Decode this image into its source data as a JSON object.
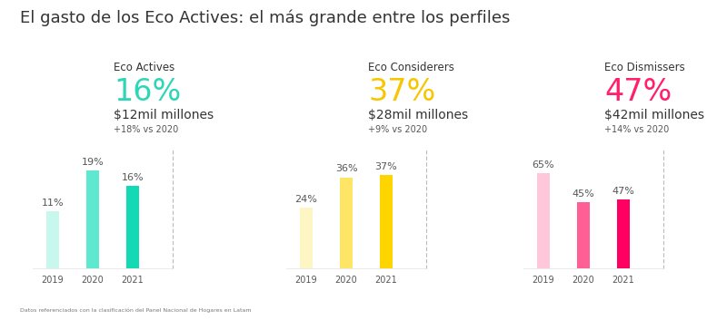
{
  "title": "El gasto de los Eco Actives: el más grande entre los perfiles",
  "footnote": "Datos referenciados con la clasificación del Panel Nacional de Hogares en Latam",
  "chart_data": [
    {
      "type": "bar",
      "title": "Eco Actives",
      "color": "#2ed6b8",
      "annotations": [
        "16%",
        "$12mil millones",
        "+18% vs 2020"
      ],
      "categories": [
        "2019",
        "2020",
        "2021"
      ],
      "values": [
        11,
        19,
        16
      ],
      "value_labels": [
        "11%",
        "19%",
        "16%"
      ],
      "data_labels": true,
      "colors": [
        "#c8f7ee",
        "#5de8cf",
        "#14d9b5"
      ],
      "ylim": [
        0,
        23
      ],
      "yticks": [],
      "tick_labels": "x",
      "grid": false
    },
    {
      "type": "bar",
      "title": "Eco Considerers",
      "color": "#f7c600",
      "annotations": [
        "37%",
        "$28mil millones",
        "+9% vs 2020"
      ],
      "categories": [
        "2019",
        "2020",
        "2021"
      ],
      "values": [
        24,
        36,
        37
      ],
      "value_labels": [
        "24%",
        "36%",
        "37%"
      ],
      "data_labels": true,
      "colors": [
        "#fdf5c4",
        "#ffe566",
        "#ffd500"
      ],
      "ylim": [
        0,
        47
      ],
      "yticks": [],
      "tick_labels": "x",
      "grid": false
    },
    {
      "type": "bar",
      "title": "Eco Dismissers",
      "color": "#ff1f6b",
      "annotations": [
        "47%",
        "$42mil millones",
        "+14% vs 2020"
      ],
      "categories": [
        "2019",
        "2020",
        "2021"
      ],
      "values": [
        65,
        45,
        47
      ],
      "value_labels": [
        "65%",
        "45%",
        "47%"
      ],
      "data_labels": true,
      "colors": [
        "#ffc7d9",
        "#ff5f95",
        "#ff0062"
      ],
      "ylim": [
        0,
        81
      ],
      "yticks": [],
      "tick_labels": "x",
      "grid": false
    }
  ]
}
